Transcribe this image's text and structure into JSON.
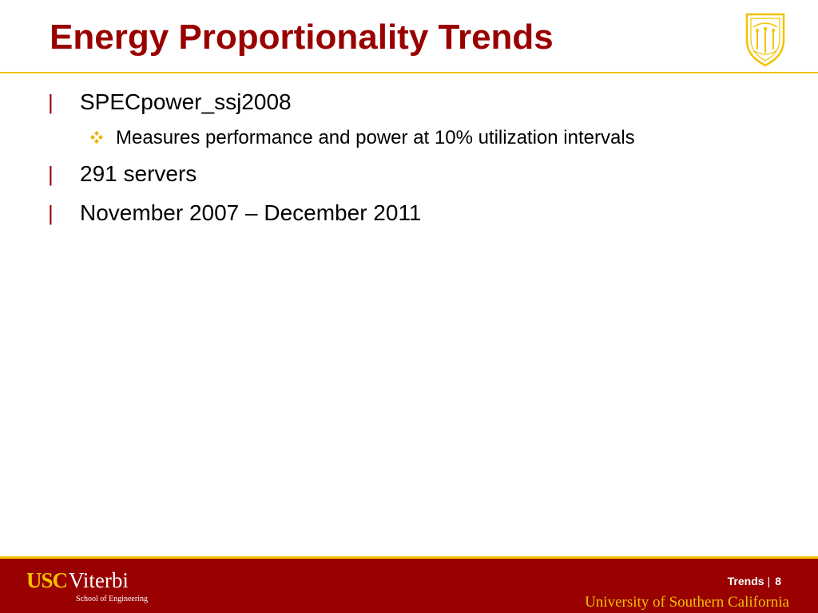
{
  "slide": {
    "title": "Energy Proportionality Trends",
    "accent_color": "#990000",
    "gold_color": "#f2c200",
    "seal_icon": "usc-seal-icon"
  },
  "bullets": [
    {
      "level": 1,
      "marker": "|",
      "text": "SPECpower_ssj2008"
    },
    {
      "level": 2,
      "marker_icon": "four-diamond-icon",
      "text": "Measures performance and power at 10% utilization intervals"
    },
    {
      "level": 1,
      "marker": "|",
      "text": "291 servers"
    },
    {
      "level": 1,
      "marker": "|",
      "text": "November 2007 – December 2011"
    }
  ],
  "footer": {
    "logo_usc": "USC",
    "logo_viterbi": "Viterbi",
    "logo_subtitle": "School of Engineering",
    "section": "Trends",
    "separator": "|",
    "page_number": "8",
    "university": "University of Southern California"
  }
}
